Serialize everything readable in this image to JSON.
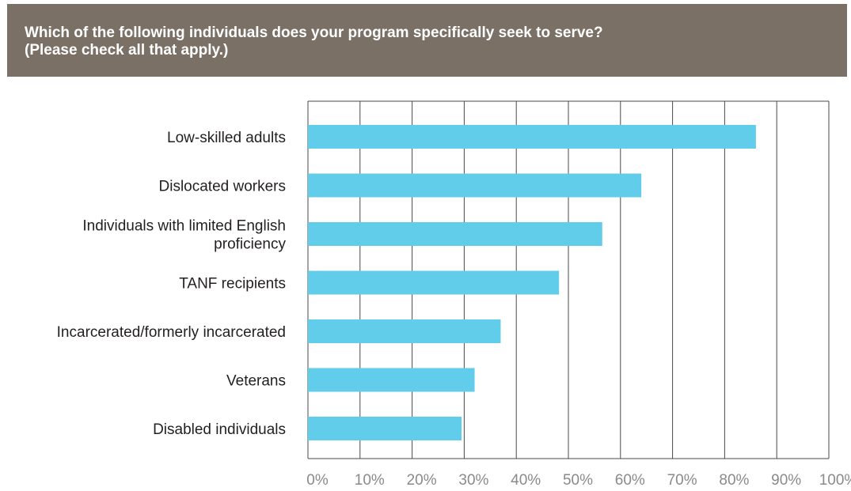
{
  "header": {
    "title": "Which of the following individuals does your program specifically seek to serve?\n(Please check all that apply.)"
  },
  "colors": {
    "header_bg": "#7b7065",
    "bar": "#62cdea",
    "grid": "#4a4a4a"
  },
  "chart_data": {
    "type": "bar",
    "orientation": "horizontal",
    "title": "Which of the following individuals does your program specifically seek to serve? (Please check all that apply.)",
    "categories": [
      [
        "Low-skilled adults"
      ],
      [
        "Dislocated workers"
      ],
      [
        "Individuals with limited English",
        "proficiency"
      ],
      [
        "TANF recipients"
      ],
      [
        "Incarcerated/formerly incarcerated"
      ],
      [
        "Veterans"
      ],
      [
        "Disabled individuals"
      ]
    ],
    "values": [
      86,
      64,
      56.5,
      48.2,
      37,
      32,
      29.5
    ],
    "xlim": [
      0,
      100
    ],
    "ticks": [
      "0%",
      "10%",
      "20%",
      "30%",
      "40%",
      "50%",
      "60%",
      "70%",
      "80%",
      "90%",
      "100%"
    ],
    "grid": true,
    "legend": "none"
  }
}
